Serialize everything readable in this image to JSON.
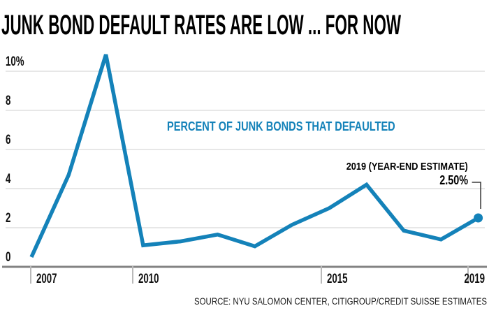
{
  "title": "JUNK BOND DEFAULT RATES ARE LOW ... FOR NOW",
  "source": "SOURCE: NYU SALOMON CENTER, CITIGROUP/CREDIT SUISSE ESTIMATES",
  "accent_color": "#1482b9",
  "chart_data": {
    "type": "line",
    "title": "JUNK BOND DEFAULT RATES ARE LOW ... FOR NOW",
    "series_label": "PERCENT OF JUNK BONDS THAT DEFAULTED",
    "x": [
      2007,
      2008,
      2009,
      2010,
      2011,
      2012,
      2013,
      2014,
      2015,
      2016,
      2017,
      2018,
      2019
    ],
    "values": [
      0.5,
      4.7,
      10.85,
      1.1,
      1.3,
      1.65,
      1.05,
      2.15,
      3.0,
      4.2,
      1.85,
      1.4,
      2.5
    ],
    "x_tick_years": [
      2007,
      2010,
      2015,
      2019
    ],
    "x_tick_labels": [
      "2007",
      "2010",
      "2015",
      "2019"
    ],
    "y_ticks": [
      0,
      2,
      4,
      6,
      8,
      10
    ],
    "y_tick_labels": [
      "0",
      "2",
      "4",
      "6",
      "8",
      "10%"
    ],
    "ylim": [
      0,
      10.9
    ],
    "grid": "horizontal",
    "legend_position": "none",
    "line_color": "#1482b9",
    "annotation": {
      "label": "2019 (YEAR-END ESTIMATE)",
      "value": "2.50%",
      "year": 2019
    },
    "end_point_marker": true
  }
}
